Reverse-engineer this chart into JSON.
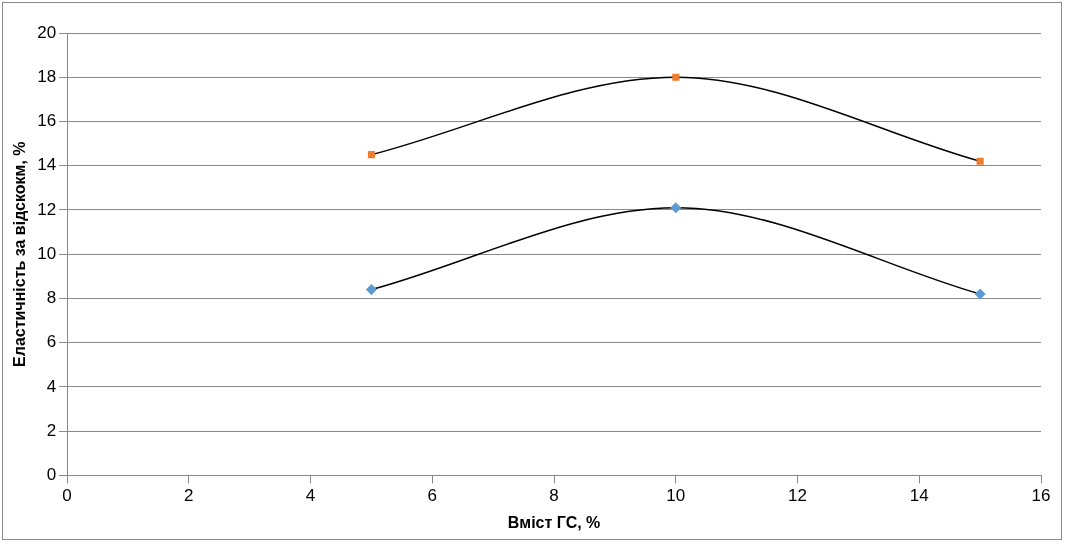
{
  "chart_data": {
    "type": "scatter",
    "xlabel": "Вміст ГС, %",
    "ylabel": "Еластичність за відскокм, %",
    "x": [
      5,
      10,
      15
    ],
    "series": [
      {
        "type": "line",
        "color": "#5b9bd5",
        "marker": "diamond",
        "values": [
          8.4,
          12.1,
          8.2
        ]
      },
      {
        "type": "line",
        "color": "#ed7d31",
        "marker": "square",
        "values": [
          14.5,
          18,
          14.2
        ]
      }
    ],
    "xlim": [
      0,
      16
    ],
    "xticks": [
      0,
      2,
      4,
      6,
      8,
      10,
      12,
      14,
      16
    ],
    "ylim": [
      0,
      20
    ],
    "yticks": [
      0,
      2,
      4,
      6,
      8,
      10,
      12,
      14,
      16,
      18,
      20
    ],
    "grid": "y",
    "legend": false
  }
}
